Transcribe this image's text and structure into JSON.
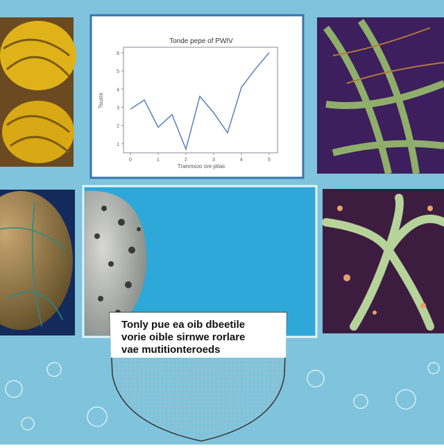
{
  "chart": {
    "type": "line",
    "title": "Tonde pepe of PWIV",
    "x_label": "Tranmsoo ore ptias",
    "y_label": "Tsusts",
    "x": [
      0,
      0.5,
      1,
      1.5,
      2,
      2.5,
      3,
      3.5,
      4,
      4.5,
      5
    ],
    "values": [
      2.9,
      3.4,
      1.9,
      2.6,
      0.7,
      3.6,
      2.7,
      1.6,
      4.1,
      5.1,
      6.0
    ],
    "color": "#5a7fb8",
    "xlim": [
      -0.25,
      5.3
    ],
    "xticks": [
      0,
      1,
      2,
      3,
      4,
      5
    ],
    "ylim": [
      0.5,
      6.3
    ],
    "yticks": [
      1,
      2,
      3,
      4,
      5,
      6
    ]
  },
  "note": {
    "lines": [
      "Tonly pue ea oib dbeetile",
      "vorie oible sirnwe rorlare",
      "vae mutitionteroeds"
    ]
  }
}
